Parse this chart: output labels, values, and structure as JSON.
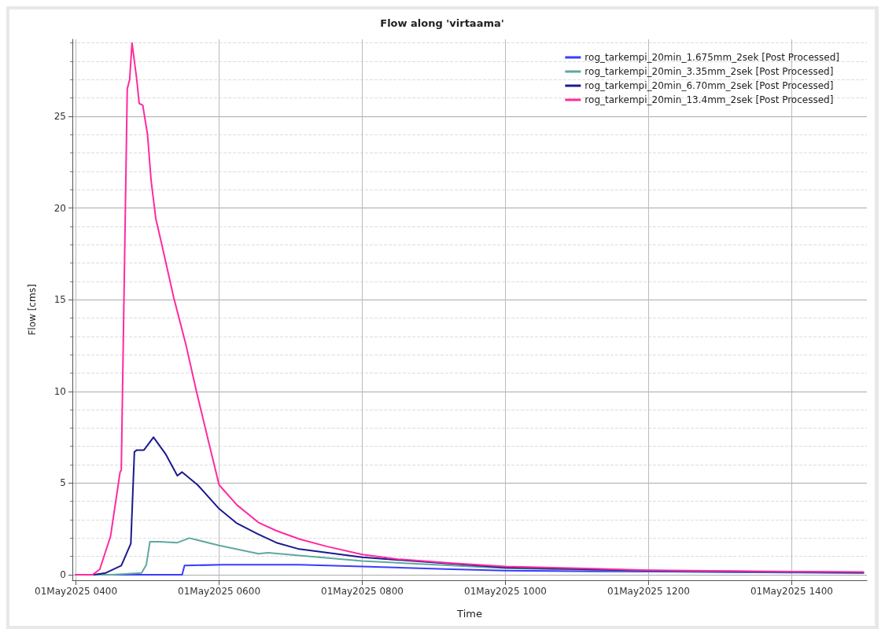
{
  "chart_data": {
    "type": "line",
    "title": "Flow along 'virtaama'",
    "xlabel": "Time",
    "ylabel": "Flow [cms]",
    "xlim": [
      "2025-05-01T03:57",
      "2025-05-01T15:03"
    ],
    "xticks": [
      {
        "value": "2025-05-01T04:00",
        "label": "01May2025 0400"
      },
      {
        "value": "2025-05-01T06:00",
        "label": "01May2025 0600"
      },
      {
        "value": "2025-05-01T08:00",
        "label": "01May2025 0800"
      },
      {
        "value": "2025-05-01T10:00",
        "label": "01May2025 1000"
      },
      {
        "value": "2025-05-01T12:00",
        "label": "01May2025 1200"
      },
      {
        "value": "2025-05-01T14:00",
        "label": "01May2025 1400"
      }
    ],
    "ylim": [
      -0.3,
      29.2
    ],
    "yticks": [
      0,
      5,
      10,
      15,
      20,
      25
    ],
    "grid": true,
    "legend": "top right",
    "marker": "none",
    "line_style": "solid",
    "series": [
      {
        "name": "rog_tarkempi_20min_1.675mm_2sek [Post Processed]",
        "color": "#3b3bff",
        "x": [
          "2025-05-01T04:00",
          "2025-05-01T05:29",
          "2025-05-01T05:31",
          "2025-05-01T06:03",
          "2025-05-01T07:07",
          "2025-05-01T08:00",
          "2025-05-01T09:15",
          "2025-05-01T10:00",
          "2025-05-01T12:00",
          "2025-05-01T14:00",
          "2025-05-01T15:00"
        ],
        "values": [
          0,
          0,
          0.5,
          0.55,
          0.55,
          0.45,
          0.3,
          0.22,
          0.17,
          0.12,
          0.1
        ]
      },
      {
        "name": "rog_tarkempi_20min_3.35mm_2sek [Post Processed]",
        "color": "#5fa8a0",
        "x": [
          "2025-05-01T04:00",
          "2025-05-01T04:30",
          "2025-05-01T04:55",
          "2025-05-01T04:59",
          "2025-05-01T05:02",
          "2025-05-01T05:10",
          "2025-05-01T05:25",
          "2025-05-01T05:35",
          "2025-05-01T06:00",
          "2025-05-01T06:33",
          "2025-05-01T06:41",
          "2025-05-01T07:07",
          "2025-05-01T08:00",
          "2025-05-01T09:15",
          "2025-05-01T10:00",
          "2025-05-01T12:00",
          "2025-05-01T14:00",
          "2025-05-01T15:00"
        ],
        "values": [
          0,
          0,
          0.1,
          0.55,
          1.8,
          1.8,
          1.75,
          2.0,
          1.6,
          1.15,
          1.2,
          1.05,
          0.75,
          0.5,
          0.35,
          0.2,
          0.14,
          0.1
        ]
      },
      {
        "name": "rog_tarkempi_20min_6.70mm_2sek [Post Processed]",
        "color": "#1a1a8c",
        "x": [
          "2025-05-01T04:00",
          "2025-05-01T04:15",
          "2025-05-01T04:25",
          "2025-05-01T04:38",
          "2025-05-01T04:46",
          "2025-05-01T04:49",
          "2025-05-01T04:51",
          "2025-05-01T04:57",
          "2025-05-01T05:05",
          "2025-05-01T05:15",
          "2025-05-01T05:25",
          "2025-05-01T05:29",
          "2025-05-01T05:42",
          "2025-05-01T06:00",
          "2025-05-01T06:15",
          "2025-05-01T06:33",
          "2025-05-01T06:48",
          "2025-05-01T07:07",
          "2025-05-01T08:00",
          "2025-05-01T09:15",
          "2025-05-01T10:00",
          "2025-05-01T12:00",
          "2025-05-01T14:00",
          "2025-05-01T15:00"
        ],
        "values": [
          0,
          0,
          0.1,
          0.5,
          1.7,
          6.7,
          6.8,
          6.8,
          7.5,
          6.6,
          5.4,
          5.6,
          4.9,
          3.6,
          2.8,
          2.2,
          1.75,
          1.4,
          0.95,
          0.6,
          0.4,
          0.22,
          0.15,
          0.12
        ]
      },
      {
        "name": "rog_tarkempi_20min_13.4mm_2sek [Post Processed]",
        "color": "#ff2aa0",
        "x": [
          "2025-05-01T04:00",
          "2025-05-01T04:14",
          "2025-05-01T04:20",
          "2025-05-01T04:29",
          "2025-05-01T04:37",
          "2025-05-01T04:38",
          "2025-05-01T04:43",
          "2025-05-01T04:45",
          "2025-05-01T04:47",
          "2025-05-01T04:51",
          "2025-05-01T04:53",
          "2025-05-01T04:56",
          "2025-05-01T05:00",
          "2025-05-01T05:03",
          "2025-05-01T05:07",
          "2025-05-01T05:12",
          "2025-05-01T05:22",
          "2025-05-01T05:32",
          "2025-05-01T05:41",
          "2025-05-01T05:51",
          "2025-05-01T06:00",
          "2025-05-01T06:15",
          "2025-05-01T06:33",
          "2025-05-01T06:48",
          "2025-05-01T07:07",
          "2025-05-01T07:30",
          "2025-05-01T08:00",
          "2025-05-01T08:30",
          "2025-05-01T09:15",
          "2025-05-01T10:00",
          "2025-05-01T12:00",
          "2025-05-01T14:00",
          "2025-05-01T15:00"
        ],
        "values": [
          0,
          0,
          0.3,
          2.1,
          5.6,
          5.7,
          26.5,
          27.0,
          29.0,
          27.0,
          25.7,
          25.6,
          24.0,
          21.5,
          19.4,
          18.0,
          15.1,
          12.6,
          10.0,
          7.3,
          4.9,
          3.8,
          2.85,
          2.4,
          1.95,
          1.55,
          1.1,
          0.85,
          0.63,
          0.45,
          0.25,
          0.17,
          0.15
        ]
      }
    ]
  }
}
